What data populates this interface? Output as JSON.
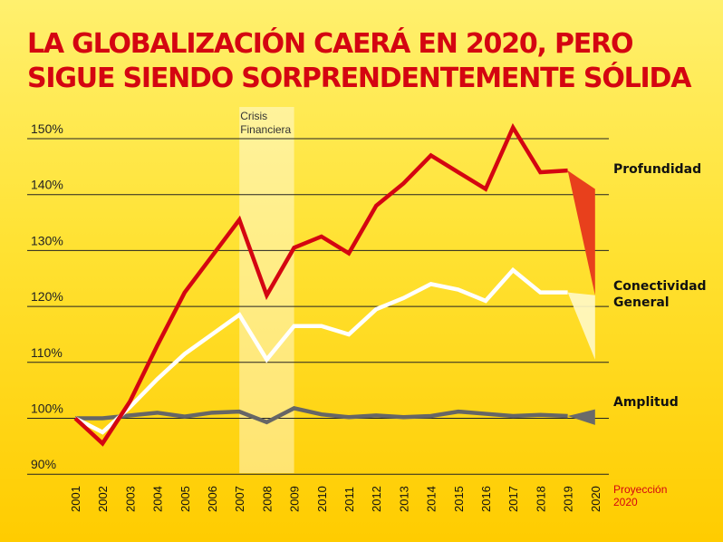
{
  "chart_data": {
    "type": "line",
    "title": "LA GLOBALIZACIÓN CAERÁ EN 2020, PERO SIGUE SIENDO SORPRENDENTEMENTE SÓLIDA",
    "x": [
      "2001",
      "2002",
      "2003",
      "2004",
      "2005",
      "2006",
      "2007",
      "2008",
      "2009",
      "2010",
      "2011",
      "2012",
      "2013",
      "2014",
      "2015",
      "2016",
      "2017",
      "2018",
      "2019",
      "2020"
    ],
    "ylim": [
      90,
      150
    ],
    "yticks": [
      150,
      140,
      130,
      120,
      110,
      100,
      90
    ],
    "ytick_labels": [
      "150%",
      "140%",
      "130%",
      "120%",
      "110%",
      "100%",
      "90%"
    ],
    "grid": true,
    "series": [
      {
        "name": "Profundidad",
        "color": "#d40511",
        "values": [
          100,
          95.5,
          103,
          113,
          122.5,
          129,
          135.5,
          122,
          130.5,
          132.5,
          129.5,
          138,
          142,
          147,
          144,
          141,
          152,
          144,
          144.3,
          null
        ],
        "projection": [
          141,
          122
        ]
      },
      {
        "name": "Conectividad General",
        "color": "#ffffff",
        "values": [
          100,
          97.5,
          102,
          107,
          111.5,
          115,
          118.5,
          110.5,
          116.5,
          116.5,
          115,
          119.5,
          121.5,
          124,
          123,
          121,
          126.5,
          122.5,
          122.5,
          null
        ],
        "projection": [
          122,
          110.5
        ]
      },
      {
        "name": "Amplitud",
        "color": "#666666",
        "values": [
          100,
          100,
          100.5,
          101,
          100.3,
          101,
          101.2,
          99.3,
          101.8,
          100.7,
          100.2,
          100.5,
          100.2,
          100.4,
          101.2,
          100.8,
          100.4,
          100.6,
          100.4,
          null
        ],
        "projection": [
          101.6,
          98.8
        ]
      }
    ],
    "annotations": {
      "crisis_label_1": "Crisis",
      "crisis_label_2": "Financiera",
      "crisis_span": [
        "2007",
        "2009"
      ],
      "projection_label_1": "Proyección",
      "projection_label_2": "2020"
    }
  }
}
